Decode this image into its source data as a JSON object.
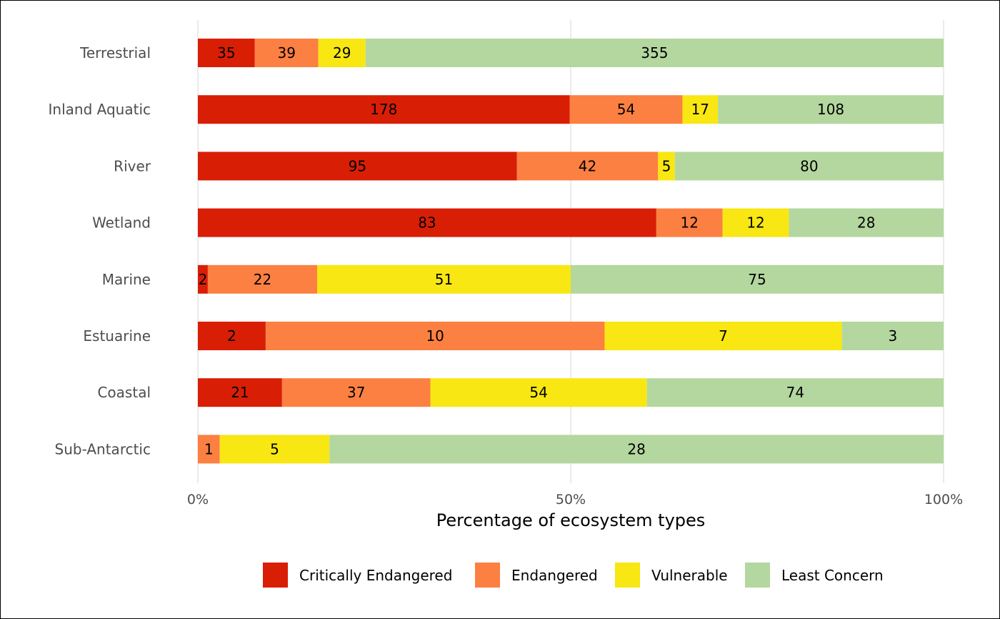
{
  "chart_data": {
    "type": "bar",
    "orientation": "horizontal",
    "stacking": "percent",
    "categories": [
      "Terrestrial",
      "Inland Aquatic",
      "River",
      "Wetland",
      "Marine",
      "Estuarine",
      "Coastal",
      "Sub-Antarctic"
    ],
    "series": [
      {
        "name": "Critically Endangered",
        "color": "#d91e06",
        "values": [
          35,
          178,
          95,
          83,
          2,
          2,
          21,
          0
        ]
      },
      {
        "name": "Endangered",
        "color": "#fc8042",
        "values": [
          39,
          54,
          42,
          12,
          22,
          10,
          37,
          1
        ]
      },
      {
        "name": "Vulnerable",
        "color": "#f8e712",
        "values": [
          29,
          17,
          5,
          12,
          51,
          7,
          54,
          5
        ]
      },
      {
        "name": "Least Concern",
        "color": "#b3d79e",
        "values": [
          355,
          108,
          80,
          28,
          75,
          3,
          74,
          28
        ]
      }
    ],
    "xlabel": "Percentage of ecosystem types",
    "ylabel": "",
    "xlim": [
      0,
      100
    ],
    "x_ticks": [
      {
        "value": 0,
        "label": "0%"
      },
      {
        "value": 50,
        "label": "50%"
      },
      {
        "value": 100,
        "label": "100%"
      }
    ],
    "grid": "vertical-major",
    "legend_position": "bottom",
    "data_labels": true
  }
}
